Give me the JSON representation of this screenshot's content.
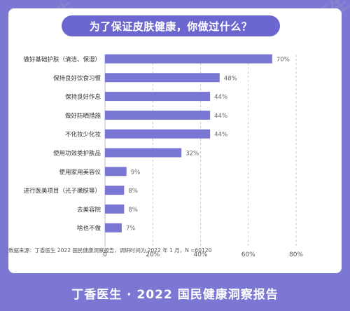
{
  "header": {
    "title": "为了保证皮肤健康，你做过什么？"
  },
  "source_note": "数据来源：丁香医生 2022 国民健康洞察报告，调研时间为 2022 年 1 月，N =60120",
  "footer": {
    "text": "丁香医生 · 2022 国民健康洞察报告"
  },
  "watermark": {
    "text": "丁香医生"
  },
  "chart_data": {
    "type": "bar",
    "orientation": "horizontal",
    "categories": [
      "做好基础护肤（清洁、保湿）",
      "保持良好饮食习惯",
      "保持良好作息",
      "做好防晒措施",
      "不化妆少化妆",
      "使用功效类护肤品",
      "使用家用美容仪",
      "进行医美项目（光子嫩肤等）",
      "去美容院",
      "啥也不做"
    ],
    "values": [
      70,
      48,
      44,
      44,
      44,
      32,
      9,
      8,
      8,
      7
    ],
    "value_labels": [
      "70%",
      "48%",
      "44%",
      "44%",
      "44%",
      "32%",
      "9%",
      "8%",
      "8%",
      "7%"
    ],
    "xticks": [
      0,
      20,
      40,
      60,
      80
    ],
    "xtick_labels": [
      "0",
      "20%",
      "40%",
      "60%",
      "80%"
    ],
    "xlim": [
      0,
      80
    ],
    "grid": true,
    "bar_color": "#7a76d4"
  },
  "colors": {
    "background": "#7b77d3",
    "title_pill": "#6c67cf",
    "bar": "#7a76d4"
  }
}
